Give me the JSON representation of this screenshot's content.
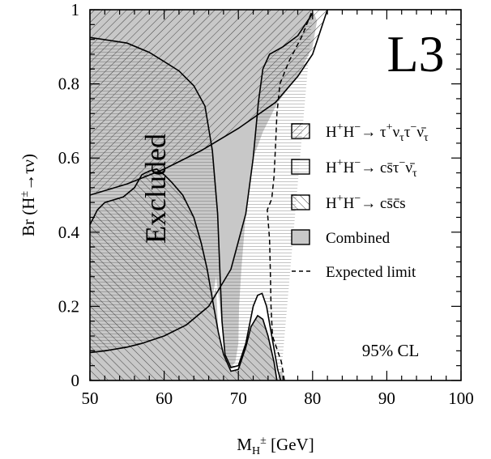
{
  "chart_data": {
    "type": "area",
    "experiment_label": "L3",
    "excluded_label": "Excluded",
    "cl_label": "95% CL",
    "xlabel": {
      "base": "M",
      "sub": "H",
      "sup": "±",
      "unit": "[GeV]"
    },
    "ylabel": {
      "prefix": "Br (H",
      "sup": "±",
      "arrow": "→",
      "suffix": "τν)"
    },
    "xlim": [
      50,
      100
    ],
    "ylim": [
      0,
      1
    ],
    "x_ticks": [
      50,
      60,
      70,
      80,
      90,
      100
    ],
    "y_ticks": [
      0,
      0.2,
      0.4,
      0.6,
      0.8,
      1
    ],
    "x_tick_labels": [
      "50",
      "60",
      "70",
      "80",
      "90",
      "100"
    ],
    "y_tick_labels": [
      "0",
      "0.2",
      "0.4",
      "0.6",
      "0.8",
      "1"
    ],
    "legend": {
      "placement": "right",
      "entries": [
        {
          "key": "tautau",
          "pattern": "diag-right",
          "parts": [
            "H",
            "+",
            "H",
            "−",
            "→  τ",
            "+",
            "ν",
            "τ",
            "τ",
            "−",
            "ν̄",
            "τ"
          ]
        },
        {
          "key": "cstau",
          "pattern": "horizontal",
          "parts": [
            "H",
            "+",
            "H",
            "−",
            "→  cs̄τ",
            "−",
            "ν̄",
            "τ"
          ]
        },
        {
          "key": "cscs",
          "pattern": "diag-left",
          "parts": [
            "H",
            "+",
            "H",
            "−",
            "→  cs̄c̄s"
          ]
        },
        {
          "key": "combined",
          "pattern": "solid",
          "label": "Combined"
        },
        {
          "key": "expected",
          "pattern": "dashed",
          "label": "Expected limit"
        }
      ]
    },
    "series": [
      {
        "key": "tautau",
        "name": "H+H- → τ+ντ τ- ν̄τ",
        "boundary": [
          [
            50,
            0.5
          ],
          [
            55,
            0.53
          ],
          [
            60,
            0.57
          ],
          [
            65,
            0.62
          ],
          [
            70,
            0.68
          ],
          [
            75,
            0.75
          ],
          [
            78,
            0.82
          ],
          [
            80,
            0.88
          ],
          [
            81,
            0.94
          ],
          [
            82,
            1.0
          ]
        ]
      },
      {
        "key": "cstau",
        "name": "H+H- → cs̄ τ- ν̄τ",
        "upper": [
          [
            50,
            0.925
          ],
          [
            55,
            0.91
          ],
          [
            58,
            0.885
          ],
          [
            60,
            0.86
          ],
          [
            62,
            0.835
          ],
          [
            64,
            0.795
          ],
          [
            65.5,
            0.74
          ],
          [
            66.5,
            0.62
          ],
          [
            67.2,
            0.45
          ],
          [
            67.5,
            0.3
          ],
          [
            67.8,
            0.16
          ],
          [
            68.2,
            0.07
          ],
          [
            69,
            0.035
          ],
          [
            70,
            0.04
          ],
          [
            71,
            0.1
          ],
          [
            72,
            0.2
          ],
          [
            72.6,
            0.23
          ],
          [
            73.2,
            0.235
          ],
          [
            73.8,
            0.2
          ],
          [
            74.5,
            0.12
          ],
          [
            75.3,
            0.03
          ],
          [
            75.7,
            0
          ]
        ],
        "lower": [
          [
            50,
            0.075
          ],
          [
            52,
            0.08
          ],
          [
            55,
            0.09
          ],
          [
            57,
            0.1
          ],
          [
            60,
            0.12
          ],
          [
            63,
            0.15
          ],
          [
            66,
            0.2
          ],
          [
            69,
            0.3
          ],
          [
            71,
            0.45
          ],
          [
            72,
            0.6
          ],
          [
            72.7,
            0.75
          ],
          [
            73.3,
            0.84
          ],
          [
            74.2,
            0.88
          ],
          [
            76,
            0.9
          ],
          [
            78,
            0.93
          ],
          [
            80,
            0.99
          ]
        ]
      },
      {
        "key": "cscs",
        "name": "H+H- → cs̄ c̄s",
        "boundary": [
          [
            50,
            0.42
          ],
          [
            51,
            0.46
          ],
          [
            52,
            0.48
          ],
          [
            54.5,
            0.495
          ],
          [
            56,
            0.52
          ],
          [
            57,
            0.555
          ],
          [
            58,
            0.565
          ],
          [
            59,
            0.57
          ],
          [
            60,
            0.555
          ],
          [
            61,
            0.535
          ],
          [
            62.5,
            0.5
          ],
          [
            64,
            0.44
          ],
          [
            65,
            0.37
          ],
          [
            65.8,
            0.3
          ],
          [
            66.5,
            0.22
          ],
          [
            67.3,
            0.13
          ],
          [
            68,
            0.07
          ],
          [
            69,
            0.025
          ],
          [
            70,
            0.03
          ],
          [
            71,
            0.09
          ],
          [
            71.7,
            0.145
          ],
          [
            72.6,
            0.175
          ],
          [
            73.3,
            0.165
          ],
          [
            74,
            0.12
          ],
          [
            74.8,
            0.05
          ],
          [
            75.2,
            0
          ]
        ]
      },
      {
        "key": "expected",
        "name": "Expected limit",
        "line": [
          [
            76.2,
            0
          ],
          [
            75.8,
            0.05
          ],
          [
            74.6,
            0.12
          ],
          [
            74.4,
            0.2
          ],
          [
            74.3,
            0.3
          ],
          [
            74.2,
            0.38
          ],
          [
            73.9,
            0.46
          ],
          [
            74.5,
            0.49
          ],
          [
            74.8,
            0.55
          ],
          [
            75,
            0.63
          ],
          [
            75.2,
            0.72
          ],
          [
            75.6,
            0.8
          ],
          [
            76.8,
            0.86
          ],
          [
            78.6,
            0.93
          ],
          [
            80,
            1.0
          ]
        ]
      },
      {
        "key": "combined",
        "name": "Combined",
        "upper": [
          [
            50,
            1
          ],
          [
            80,
            1
          ],
          [
            80.6,
            0.97
          ],
          [
            80,
            0.9
          ],
          [
            78,
            0.82
          ],
          [
            75.3,
            0.75
          ],
          [
            73.3,
            0.67
          ],
          [
            72,
            0.6
          ],
          [
            71,
            0.45
          ],
          [
            70.4,
            0.3
          ],
          [
            70.1,
            0.2
          ],
          [
            70,
            0.1
          ],
          [
            69.6,
            0.05
          ],
          [
            69,
            0.035
          ],
          [
            68.2,
            0.07
          ],
          [
            67.5,
            0.2
          ],
          [
            67,
            0.28
          ],
          [
            66.5,
            0.22
          ],
          [
            65.8,
            0.3
          ],
          [
            65,
            0.37
          ],
          [
            64,
            0.44
          ],
          [
            62.5,
            0.5
          ],
          [
            60,
            0.555
          ],
          [
            58,
            0.565
          ],
          [
            56,
            0.52
          ],
          [
            54.5,
            0.495
          ],
          [
            52,
            0.48
          ],
          [
            50,
            0.42
          ]
        ],
        "lower_area": [
          [
            50,
            0
          ],
          [
            76.2,
            0
          ],
          [
            75.8,
            0.03
          ],
          [
            75.2,
            0
          ],
          [
            74.8,
            0.05
          ],
          [
            74,
            0.12
          ],
          [
            73.3,
            0.165
          ],
          [
            72.6,
            0.175
          ],
          [
            71.7,
            0.145
          ],
          [
            71,
            0.09
          ],
          [
            70,
            0.03
          ],
          [
            69,
            0.025
          ],
          [
            68,
            0.07
          ],
          [
            67.3,
            0.13
          ],
          [
            67,
            0.25
          ],
          [
            66.5,
            0.22
          ],
          [
            65.8,
            0.3
          ],
          [
            65,
            0.37
          ],
          [
            64,
            0.44
          ],
          [
            62.5,
            0.5
          ],
          [
            60,
            0.555
          ],
          [
            58,
            0.565
          ],
          [
            56,
            0.52
          ],
          [
            54.5,
            0.495
          ],
          [
            52,
            0.48
          ],
          [
            51,
            0.46
          ],
          [
            50,
            0.42
          ]
        ]
      }
    ]
  }
}
